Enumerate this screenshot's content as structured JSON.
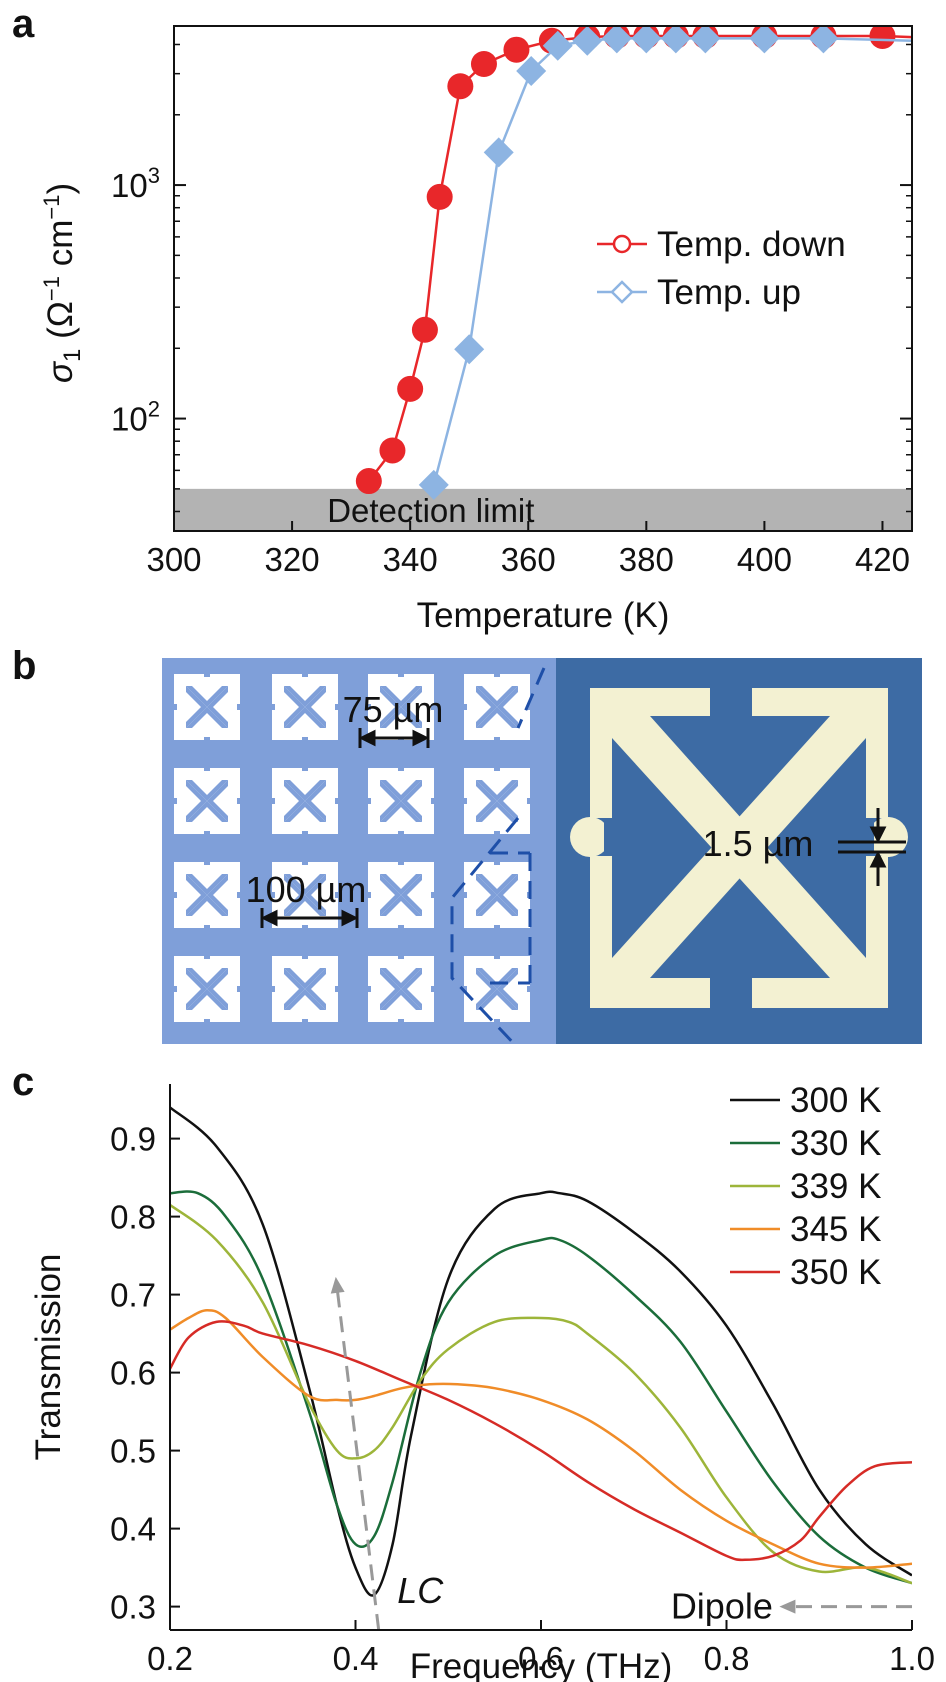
{
  "panels": {
    "a": {
      "letter": "a"
    },
    "b": {
      "letter": "b",
      "scale_labels": [
        "75 µm",
        "100 µm",
        "1.5 µm"
      ],
      "colors": {
        "substrate": "#7f9fd9",
        "metal": "#ffffff",
        "zoom_bg": "#3d6ba4",
        "zoom_metal": "#f3f1d2",
        "outline": "#1e4fa8"
      }
    },
    "c": {
      "letter": "c"
    }
  },
  "chart_data": [
    {
      "id": "a",
      "type": "line",
      "x_label_text": "Temperature (K)",
      "y_label_parts": {
        "sigma": "σ",
        "sub": "1",
        "open": " (Ω",
        "exp1": "−1",
        "mid": " cm",
        "exp2": "−1",
        "close": ")"
      },
      "xlim": [
        300,
        425
      ],
      "ylim": [
        33,
        4800
      ],
      "yscale": "log",
      "x_ticks": [
        300,
        320,
        340,
        360,
        380,
        400,
        420
      ],
      "y_ticks": [
        {
          "base": "10",
          "exp": "3",
          "value": 1000
        },
        {
          "base": "10",
          "exp": "2",
          "value": 100
        }
      ],
      "detection_limit": {
        "label": "Detection limit",
        "below": 50
      },
      "legend_position": "right-middle",
      "series": [
        {
          "name": "Temp. down",
          "color": "#e8272a",
          "marker": "circle",
          "points": [
            [
              333,
              54
            ],
            [
              337,
              73
            ],
            [
              340,
              134
            ],
            [
              342.5,
              240
            ],
            [
              345,
              890
            ],
            [
              348.5,
              2650
            ],
            [
              352.5,
              3300
            ],
            [
              358,
              3800
            ],
            [
              364,
              4150
            ],
            [
              370,
              4300
            ],
            [
              375,
              4350
            ],
            [
              380,
              4350
            ],
            [
              385,
              4350
            ],
            [
              390,
              4350
            ],
            [
              400,
              4350
            ],
            [
              410,
              4350
            ],
            [
              420,
              4350
            ]
          ],
          "line_end": [
            425,
            4300
          ]
        },
        {
          "name": "Temp. up",
          "color": "#8db4e2",
          "marker": "diamond",
          "points": [
            [
              344,
              52
            ],
            [
              350,
              198
            ],
            [
              355,
              1380
            ],
            [
              360.5,
              3080
            ],
            [
              365,
              3950
            ],
            [
              370,
              4150
            ],
            [
              375,
              4250
            ],
            [
              380,
              4250
            ],
            [
              385,
              4250
            ],
            [
              390,
              4250
            ],
            [
              400,
              4250
            ],
            [
              410,
              4250
            ]
          ],
          "line_end": [
            425,
            4150
          ]
        }
      ]
    },
    {
      "id": "c",
      "type": "line",
      "x_label_text": "Frequency (THz)",
      "y_label_text": "Transmission",
      "xlim": [
        0.2,
        1.0
      ],
      "ylim": [
        0.27,
        0.97
      ],
      "x_ticks": [
        "0.2",
        "0.4",
        "0.6",
        "0.8",
        "1.0"
      ],
      "y_ticks": [
        "0.3",
        "0.4",
        "0.5",
        "0.6",
        "0.7",
        "0.8",
        "0.9"
      ],
      "legend_position": "top-right",
      "annotations": {
        "lc": "LC",
        "dipole": "Dipole"
      },
      "series": [
        {
          "name": "300 K",
          "color": "#111111",
          "x": [
            0.2,
            0.25,
            0.3,
            0.35,
            0.38,
            0.4,
            0.42,
            0.44,
            0.46,
            0.5,
            0.55,
            0.6,
            0.62,
            0.65,
            0.7,
            0.75,
            0.8,
            0.85,
            0.9,
            0.95,
            1.0
          ],
          "y": [
            0.94,
            0.89,
            0.79,
            0.58,
            0.43,
            0.35,
            0.315,
            0.38,
            0.52,
            0.72,
            0.81,
            0.83,
            0.83,
            0.82,
            0.78,
            0.73,
            0.66,
            0.56,
            0.45,
            0.38,
            0.34
          ]
        },
        {
          "name": "330 K",
          "color": "#1b6d3a",
          "x": [
            0.2,
            0.23,
            0.26,
            0.3,
            0.35,
            0.38,
            0.4,
            0.42,
            0.44,
            0.47,
            0.5,
            0.55,
            0.6,
            0.62,
            0.65,
            0.7,
            0.75,
            0.8,
            0.85,
            0.9,
            0.95,
            1.0
          ],
          "y": [
            0.83,
            0.83,
            0.8,
            0.72,
            0.55,
            0.43,
            0.38,
            0.39,
            0.46,
            0.6,
            0.69,
            0.75,
            0.77,
            0.77,
            0.75,
            0.7,
            0.64,
            0.55,
            0.46,
            0.39,
            0.35,
            0.33
          ]
        },
        {
          "name": "339 K",
          "color": "#9db53a",
          "x": [
            0.2,
            0.25,
            0.3,
            0.35,
            0.38,
            0.4,
            0.42,
            0.44,
            0.47,
            0.5,
            0.55,
            0.6,
            0.63,
            0.65,
            0.7,
            0.75,
            0.8,
            0.85,
            0.9,
            0.95,
            1.0
          ],
          "y": [
            0.815,
            0.77,
            0.69,
            0.56,
            0.5,
            0.49,
            0.5,
            0.53,
            0.59,
            0.63,
            0.665,
            0.67,
            0.665,
            0.65,
            0.6,
            0.53,
            0.44,
            0.37,
            0.345,
            0.35,
            0.33
          ]
        },
        {
          "name": "345 K",
          "color": "#f08c28",
          "x": [
            0.2,
            0.22,
            0.24,
            0.26,
            0.3,
            0.35,
            0.38,
            0.4,
            0.42,
            0.45,
            0.48,
            0.51,
            0.55,
            0.6,
            0.65,
            0.7,
            0.75,
            0.8,
            0.85,
            0.9,
            0.95,
            1.0
          ],
          "y": [
            0.655,
            0.67,
            0.68,
            0.67,
            0.62,
            0.57,
            0.565,
            0.565,
            0.57,
            0.58,
            0.585,
            0.585,
            0.58,
            0.565,
            0.54,
            0.5,
            0.45,
            0.41,
            0.38,
            0.355,
            0.35,
            0.355
          ]
        },
        {
          "name": "350 K",
          "color": "#d62b26",
          "x": [
            0.2,
            0.22,
            0.25,
            0.28,
            0.3,
            0.35,
            0.4,
            0.45,
            0.5,
            0.55,
            0.6,
            0.65,
            0.7,
            0.75,
            0.8,
            0.82,
            0.85,
            0.88,
            0.9,
            0.93,
            0.96,
            1.0
          ],
          "y": [
            0.605,
            0.645,
            0.665,
            0.66,
            0.65,
            0.635,
            0.615,
            0.59,
            0.565,
            0.535,
            0.5,
            0.46,
            0.425,
            0.395,
            0.365,
            0.36,
            0.365,
            0.385,
            0.415,
            0.455,
            0.48,
            0.485
          ]
        }
      ]
    }
  ]
}
